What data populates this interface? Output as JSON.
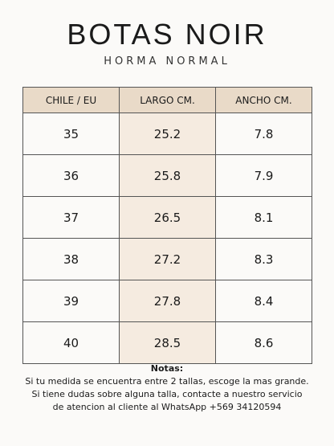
{
  "header": {
    "title": "BOTAS NOIR",
    "subtitle": "HORMA NORMAL"
  },
  "table": {
    "columns": [
      "CHILE / EU",
      "LARGO CM.",
      "ANCHO CM."
    ],
    "rows": [
      [
        "35",
        "25.2",
        "7.8"
      ],
      [
        "36",
        "25.8",
        "7.9"
      ],
      [
        "37",
        "26.5",
        "8.1"
      ],
      [
        "38",
        "27.2",
        "8.3"
      ],
      [
        "39",
        "27.8",
        "8.4"
      ],
      [
        "40",
        "28.5",
        "8.6"
      ]
    ]
  },
  "notes": {
    "title": "Notas:",
    "lines": [
      "Si tu medida se encuentra entre 2 tallas, escoge la mas grande.",
      "Si tiene dudas sobre alguna talla, contacte a nuestro servicio",
      "de atencion al cliente al WhatsApp +569 34120594"
    ]
  }
}
